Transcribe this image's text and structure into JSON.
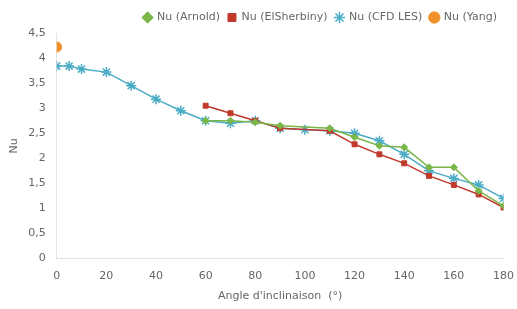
{
  "chart_data": {
    "type": "line",
    "xlabel": "Angle d'inclinaison  (°)",
    "ylabel": "Nu",
    "xlim": [
      0,
      180
    ],
    "ylim": [
      0,
      4.5
    ],
    "xticks": [
      0,
      20,
      40,
      60,
      80,
      100,
      120,
      140,
      160,
      180
    ],
    "yticks": [
      0,
      {
        "value": 0.5,
        "label": "0,5"
      },
      1,
      {
        "value": 1.5,
        "label": "1,5"
      },
      2,
      {
        "value": 2.5,
        "label": "2,5"
      },
      3,
      {
        "value": 3.5,
        "label": "3,5"
      },
      4,
      {
        "value": 4.5,
        "label": "4,5"
      }
    ],
    "grid": false,
    "legend": "upper right",
    "series": [
      {
        "name": "Nu (Arnold)",
        "color": "#7ab648",
        "marker": "diamond",
        "line_style": "solid",
        "x": [
          60,
          70,
          80,
          90,
          110,
          120,
          130,
          140,
          150,
          160,
          170,
          180
        ],
        "values": [
          2.75,
          2.75,
          2.72,
          2.65,
          2.6,
          2.42,
          2.25,
          2.22,
          1.82,
          1.82,
          1.35,
          1.05
        ]
      },
      {
        "name": "Nu (ElSherbiny)",
        "color": "#c0392b",
        "marker": "square",
        "line_style": "solid",
        "x": [
          60,
          70,
          80,
          90,
          110,
          120,
          130,
          140,
          150,
          160,
          170,
          180
        ],
        "values": [
          3.05,
          2.9,
          2.75,
          2.6,
          2.55,
          2.28,
          2.08,
          1.9,
          1.65,
          1.47,
          1.28,
          1.02
        ]
      },
      {
        "name": "Nu (CFD LES)",
        "color": "#4bacc6",
        "marker": "star",
        "line_style": "solid",
        "x": [
          0,
          5,
          10,
          20,
          30,
          40,
          50,
          60,
          70,
          80,
          90,
          100,
          110,
          120,
          130,
          140,
          150,
          160,
          170,
          180
        ],
        "values": [
          3.84,
          3.84,
          3.78,
          3.72,
          3.45,
          3.18,
          2.95,
          2.75,
          2.7,
          2.75,
          2.6,
          2.57,
          2.55,
          2.5,
          2.35,
          2.08,
          1.75,
          1.6,
          1.47,
          1.2
        ]
      },
      {
        "name": "Nu (Yang)",
        "color": "#f0922b",
        "marker": "circle",
        "line_style": "none",
        "x": [
          0
        ],
        "values": [
          4.22
        ]
      }
    ]
  }
}
